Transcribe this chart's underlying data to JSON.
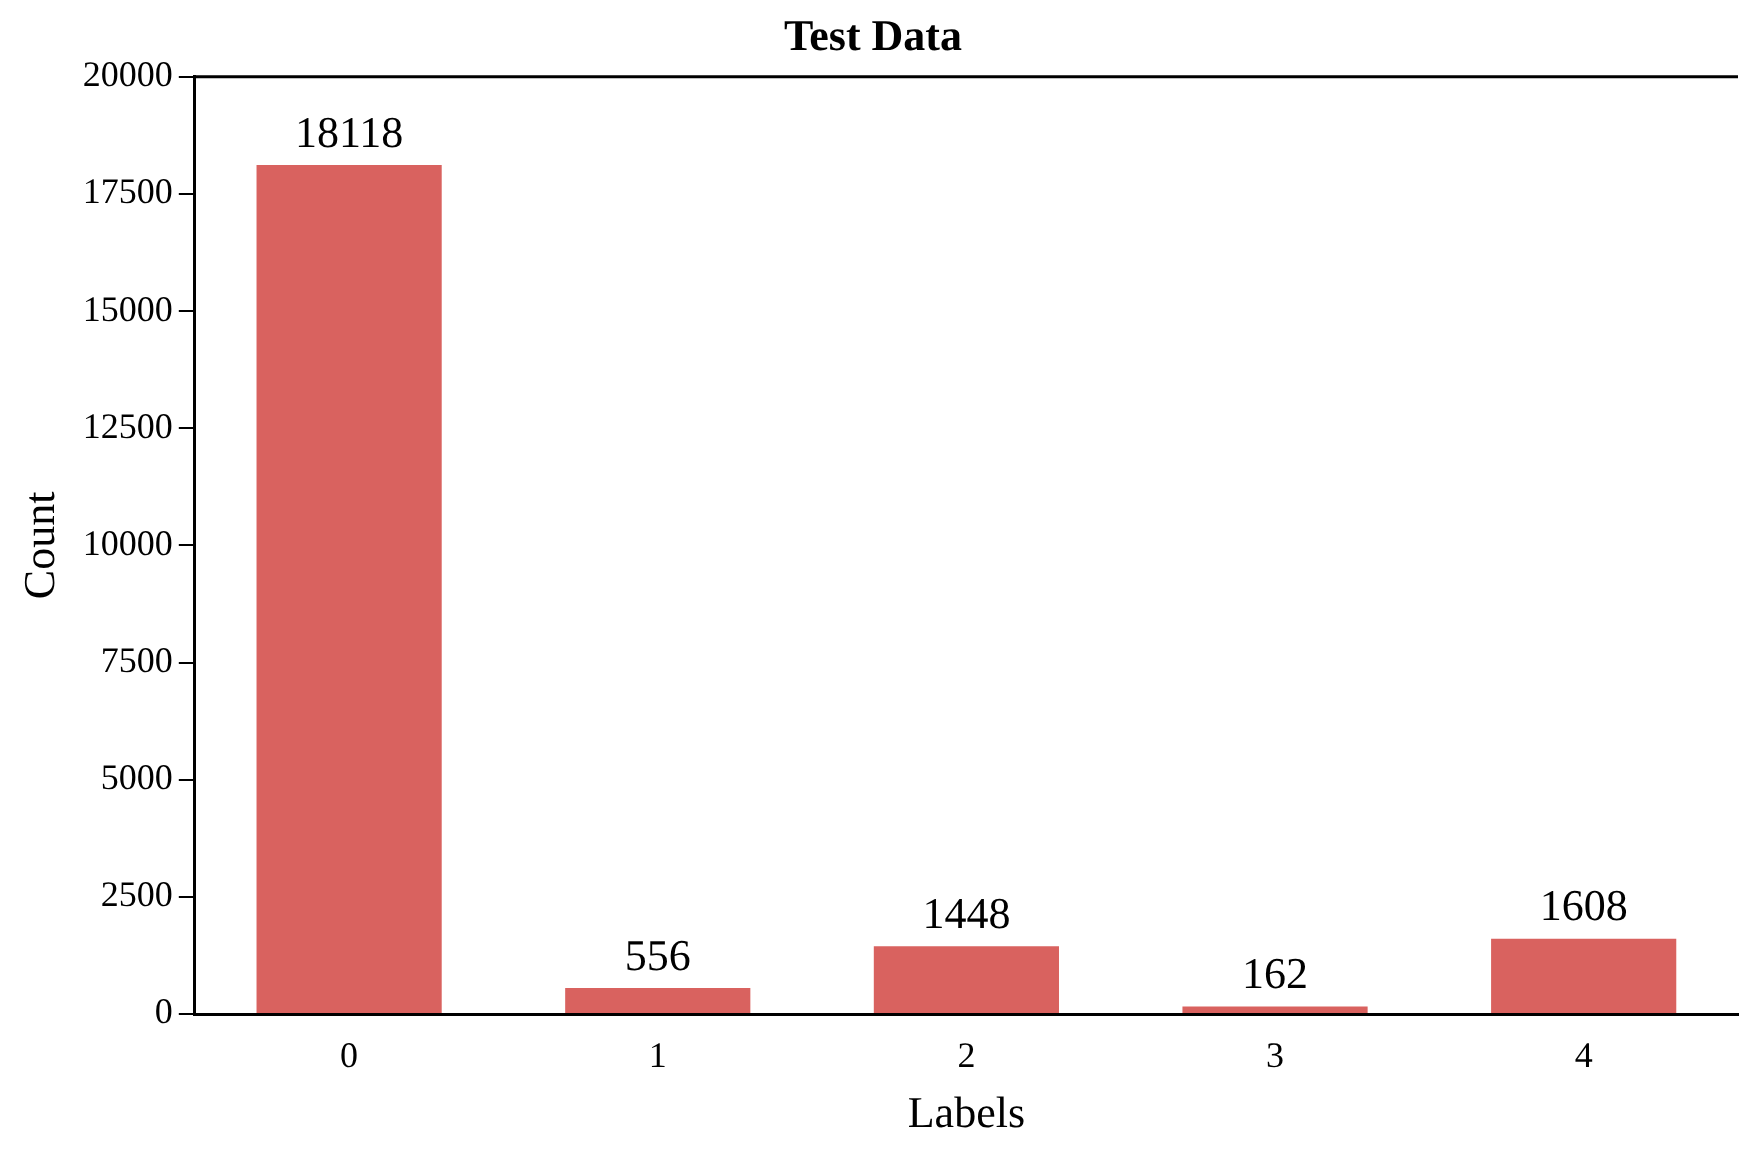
{
  "chart_data": {
    "type": "bar",
    "title": "Test Data",
    "xlabel": "Labels",
    "ylabel": "Count",
    "categories": [
      "0",
      "1",
      "2",
      "3",
      "4"
    ],
    "values": [
      18118,
      556,
      1448,
      162,
      1608
    ],
    "color": "#d9625f",
    "ylim": [
      0,
      20000
    ],
    "yticks": [
      0,
      2500,
      5000,
      7500,
      10000,
      12500,
      15000,
      17500,
      20000
    ],
    "grid": false,
    "legend": false,
    "data_labels": true
  }
}
